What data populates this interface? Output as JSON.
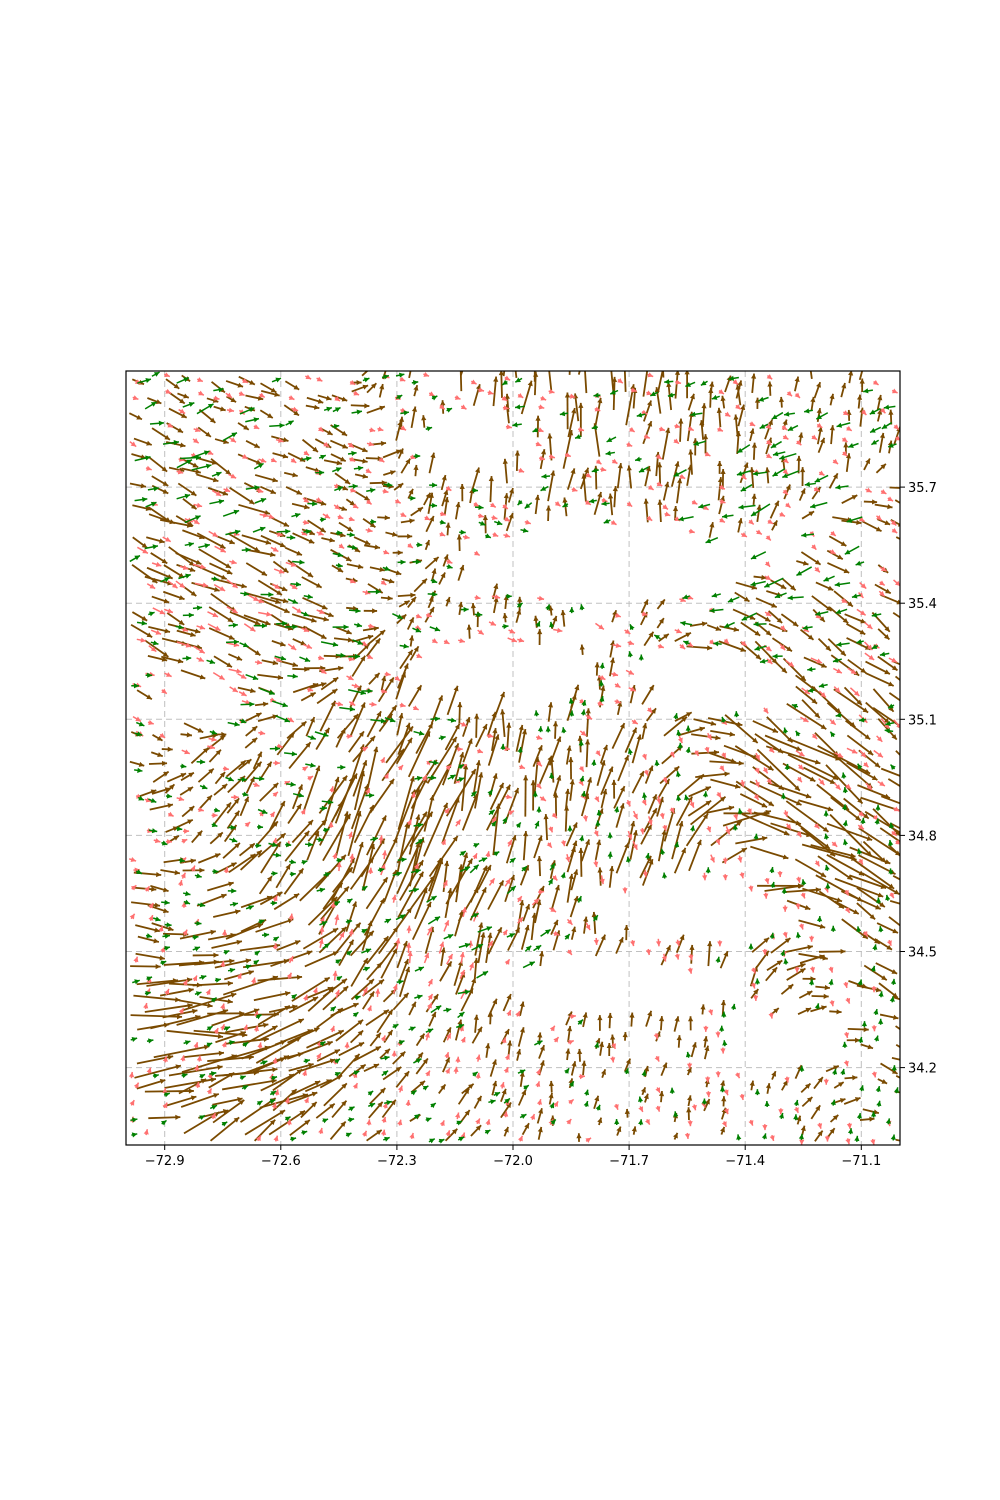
{
  "chart_data": {
    "type": "quiver",
    "title": "",
    "xlabel": "",
    "ylabel": "",
    "xlim": [
      -73.0,
      -71.0
    ],
    "ylim": [
      34.0,
      36.0
    ],
    "x_ticks": [
      -72.9,
      -72.6,
      -72.3,
      -72.0,
      -71.7,
      -71.4,
      -71.1
    ],
    "x_tick_labels": [
      "−72.9",
      "−72.6",
      "−72.3",
      "−72.0",
      "−71.7",
      "−71.4",
      "−71.1"
    ],
    "y_ticks": [
      35.7,
      35.4,
      35.1,
      34.8,
      34.5,
      34.2
    ],
    "y_tick_labels": [
      "35.7",
      "35.4",
      "35.1",
      "34.8",
      "34.5",
      "34.2"
    ],
    "y_axis_side": "right",
    "grid": true,
    "grid_style": "dashed",
    "legend": "none",
    "series": [
      {
        "color": "#7a4a00",
        "description_field": "dominant long arrows",
        "regions": [
          {
            "x": -72.85,
            "y": 34.3,
            "u": 0.9,
            "v": -0.25,
            "speed": 3.0
          },
          {
            "x": -72.8,
            "y": 35.5,
            "u": 0.95,
            "v": -0.45,
            "speed": 2.2
          },
          {
            "x": -72.4,
            "y": 34.8,
            "u": 0.55,
            "v": 0.85,
            "speed": 2.6
          },
          {
            "x": -72.2,
            "y": 34.75,
            "u": 0.25,
            "v": 0.95,
            "speed": 2.8
          },
          {
            "x": -71.8,
            "y": 35.85,
            "u": 0.1,
            "v": 1.0,
            "speed": 2.4
          },
          {
            "x": -71.3,
            "y": 35.0,
            "u": 0.8,
            "v": -0.6,
            "speed": 2.8
          },
          {
            "x": -71.2,
            "y": 34.8,
            "u": 0.85,
            "v": -0.5,
            "speed": 2.6
          },
          {
            "x": -71.6,
            "y": 34.65,
            "u": 0.15,
            "v": 0.99,
            "speed": 1.6
          },
          {
            "x": -71.9,
            "y": 35.0,
            "u": 0.1,
            "v": 1.0,
            "speed": 1.4
          },
          {
            "x": -72.7,
            "y": 34.15,
            "u": 0.7,
            "v": 0.7,
            "speed": 2.2
          }
        ]
      },
      {
        "color": "#ff7070",
        "description_field": "light red arrows",
        "regions": [
          {
            "x": -72.8,
            "y": 35.4,
            "u": 0.9,
            "v": -0.4,
            "speed": 1.4
          },
          {
            "x": -71.9,
            "y": 35.3,
            "u": 0.7,
            "v": -0.3,
            "speed": 1.0
          },
          {
            "x": -71.6,
            "y": 34.7,
            "u": 0.2,
            "v": -0.95,
            "speed": 0.9
          },
          {
            "x": -72.25,
            "y": 34.55,
            "u": 0.3,
            "v": 0.95,
            "speed": 1.2
          },
          {
            "x": -71.1,
            "y": 35.2,
            "u": 0.8,
            "v": -0.6,
            "speed": 1.2
          }
        ]
      },
      {
        "color": "#008000",
        "description_field": "green arrows",
        "regions": [
          {
            "x": -72.85,
            "y": 35.8,
            "u": 0.95,
            "v": 0.3,
            "speed": 1.8
          },
          {
            "x": -71.3,
            "y": 35.6,
            "u": -0.9,
            "v": -0.3,
            "speed": 2.0
          },
          {
            "x": -72.1,
            "y": 34.5,
            "u": 0.9,
            "v": 0.4,
            "speed": 1.4
          },
          {
            "x": -72.5,
            "y": 35.2,
            "u": 0.95,
            "v": -0.2,
            "speed": 1.6
          },
          {
            "x": -71.7,
            "y": 34.9,
            "u": 0.0,
            "v": 1.0,
            "speed": 0.6
          },
          {
            "x": -71.5,
            "y": 34.3,
            "u": 0.05,
            "v": 1.0,
            "speed": 0.5
          }
        ]
      }
    ],
    "blank_regions": [
      {
        "x": -72.1,
        "y": 35.8,
        "rx": 0.15,
        "ry": 0.06
      },
      {
        "x": -71.75,
        "y": 35.5,
        "rx": 0.35,
        "ry": 0.1
      },
      {
        "x": -72.05,
        "y": 35.2,
        "rx": 0.25,
        "ry": 0.1
      },
      {
        "x": -71.5,
        "y": 35.2,
        "rx": 0.2,
        "ry": 0.08
      },
      {
        "x": -71.55,
        "y": 34.6,
        "rx": 0.25,
        "ry": 0.07
      },
      {
        "x": -71.75,
        "y": 34.4,
        "rx": 0.35,
        "ry": 0.07
      },
      {
        "x": -72.8,
        "y": 35.15,
        "rx": 0.08,
        "ry": 0.06
      },
      {
        "x": -71.3,
        "y": 34.25,
        "rx": 0.15,
        "ry": 0.06
      }
    ]
  }
}
